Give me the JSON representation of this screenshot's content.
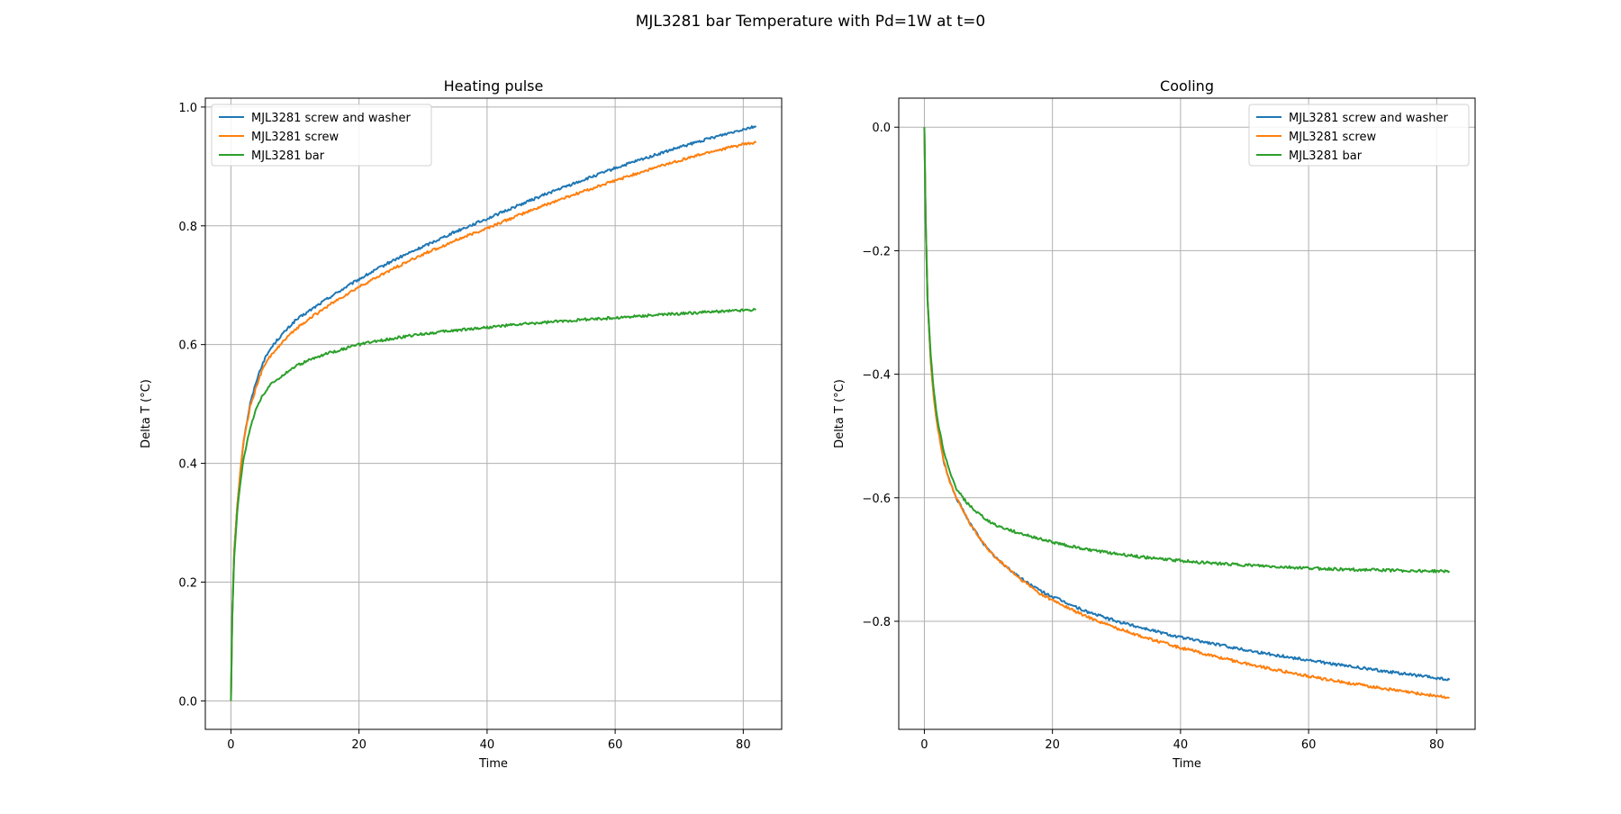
{
  "figure": {
    "title": "MJL3281 bar Temperature with Pd=1W at t=0"
  },
  "colors": {
    "series1": "#1f77b4",
    "series2": "#ff7f0e",
    "series3": "#2ca02c",
    "grid": "#b0b0b0"
  },
  "chart_data": [
    {
      "type": "line",
      "title": "Heating pulse",
      "xlabel": "Time",
      "ylabel": "Delta T (°C)",
      "xlim": [
        -4,
        86
      ],
      "ylim": [
        -0.048,
        1.015
      ],
      "xticks": [
        0,
        20,
        40,
        60,
        80
      ],
      "yticks": [
        0.0,
        0.2,
        0.4,
        0.6,
        0.8,
        1.0
      ],
      "ytick_labels": [
        "0.0",
        "0.2",
        "0.4",
        "0.6",
        "0.8",
        "1.0"
      ],
      "xtick_labels": [
        "0",
        "20",
        "40",
        "60",
        "80"
      ],
      "grid": true,
      "legend": "upper-left",
      "series": [
        {
          "name": "MJL3281 screw and washer",
          "x": [
            0,
            0.2,
            0.5,
            1,
            1.5,
            2,
            3,
            4,
            5,
            6,
            7,
            8,
            10,
            12,
            15,
            18,
            20,
            25,
            30,
            35,
            40,
            45,
            50,
            55,
            60,
            65,
            70,
            75,
            80,
            82
          ],
          "y": [
            0.0,
            0.14,
            0.25,
            0.33,
            0.39,
            0.44,
            0.5,
            0.54,
            0.57,
            0.59,
            0.605,
            0.617,
            0.64,
            0.655,
            0.677,
            0.697,
            0.71,
            0.74,
            0.765,
            0.79,
            0.812,
            0.835,
            0.857,
            0.877,
            0.897,
            0.915,
            0.932,
            0.948,
            0.963,
            0.968
          ]
        },
        {
          "name": "MJL3281 screw",
          "x": [
            0,
            0.2,
            0.5,
            1,
            1.5,
            2,
            3,
            4,
            5,
            6,
            7,
            8,
            10,
            12,
            15,
            18,
            20,
            25,
            30,
            35,
            40,
            45,
            50,
            55,
            60,
            65,
            70,
            75,
            80,
            82
          ],
          "y": [
            0.0,
            0.14,
            0.25,
            0.33,
            0.39,
            0.44,
            0.495,
            0.53,
            0.56,
            0.578,
            0.592,
            0.603,
            0.625,
            0.642,
            0.664,
            0.684,
            0.697,
            0.726,
            0.752,
            0.775,
            0.796,
            0.818,
            0.839,
            0.858,
            0.876,
            0.894,
            0.91,
            0.925,
            0.937,
            0.94
          ]
        },
        {
          "name": "MJL3281 bar",
          "x": [
            0,
            0.2,
            0.5,
            1,
            1.5,
            2,
            3,
            4,
            5,
            6,
            7,
            8,
            10,
            12,
            15,
            18,
            20,
            25,
            30,
            35,
            40,
            45,
            50,
            55,
            60,
            65,
            70,
            75,
            80,
            82
          ],
          "y": [
            0.0,
            0.14,
            0.24,
            0.32,
            0.37,
            0.41,
            0.46,
            0.495,
            0.515,
            0.53,
            0.54,
            0.548,
            0.563,
            0.573,
            0.585,
            0.594,
            0.6,
            0.61,
            0.618,
            0.624,
            0.629,
            0.634,
            0.638,
            0.642,
            0.645,
            0.649,
            0.652,
            0.655,
            0.658,
            0.659
          ]
        }
      ]
    },
    {
      "type": "line",
      "title": "Cooling",
      "xlabel": "Time",
      "ylabel": "Delta T (°C)",
      "xlim": [
        -4,
        86
      ],
      "ylim": [
        -0.975,
        0.047
      ],
      "xticks": [
        0,
        20,
        40,
        60,
        80
      ],
      "yticks": [
        0.0,
        -0.2,
        -0.4,
        -0.6,
        -0.8
      ],
      "ytick_labels": [
        "0.0",
        "−0.2",
        "−0.4",
        "−0.6",
        "−0.8"
      ],
      "xtick_labels": [
        "0",
        "20",
        "40",
        "60",
        "80"
      ],
      "grid": true,
      "legend": "upper-right",
      "series": [
        {
          "name": "MJL3281 screw and washer",
          "x": [
            0,
            0.2,
            0.5,
            1,
            1.5,
            2,
            3,
            4,
            5,
            6,
            7,
            8,
            10,
            12,
            15,
            18,
            20,
            25,
            30,
            35,
            40,
            45,
            50,
            55,
            60,
            65,
            70,
            75,
            80,
            82
          ],
          "y": [
            0.0,
            -0.15,
            -0.28,
            -0.38,
            -0.44,
            -0.48,
            -0.54,
            -0.575,
            -0.6,
            -0.62,
            -0.64,
            -0.655,
            -0.685,
            -0.705,
            -0.73,
            -0.75,
            -0.76,
            -0.783,
            -0.8,
            -0.813,
            -0.826,
            -0.836,
            -0.846,
            -0.855,
            -0.863,
            -0.871,
            -0.878,
            -0.885,
            -0.892,
            -0.895
          ]
        },
        {
          "name": "MJL3281 screw",
          "x": [
            0,
            0.2,
            0.5,
            1,
            1.5,
            2,
            3,
            4,
            5,
            6,
            7,
            8,
            10,
            12,
            15,
            18,
            20,
            25,
            30,
            35,
            40,
            45,
            50,
            55,
            60,
            65,
            70,
            75,
            80,
            82
          ],
          "y": [
            0.0,
            -0.15,
            -0.28,
            -0.38,
            -0.44,
            -0.48,
            -0.54,
            -0.575,
            -0.6,
            -0.62,
            -0.64,
            -0.655,
            -0.685,
            -0.705,
            -0.732,
            -0.755,
            -0.766,
            -0.791,
            -0.811,
            -0.828,
            -0.843,
            -0.856,
            -0.868,
            -0.879,
            -0.889,
            -0.898,
            -0.906,
            -0.914,
            -0.921,
            -0.924
          ]
        },
        {
          "name": "MJL3281 bar",
          "x": [
            0,
            0.2,
            0.5,
            1,
            1.5,
            2,
            3,
            4,
            5,
            6,
            7,
            8,
            10,
            12,
            15,
            18,
            20,
            25,
            30,
            35,
            40,
            45,
            50,
            55,
            60,
            65,
            70,
            75,
            80,
            82
          ],
          "y": [
            0.0,
            -0.15,
            -0.28,
            -0.37,
            -0.43,
            -0.47,
            -0.525,
            -0.56,
            -0.585,
            -0.6,
            -0.612,
            -0.622,
            -0.638,
            -0.648,
            -0.658,
            -0.666,
            -0.672,
            -0.683,
            -0.691,
            -0.697,
            -0.702,
            -0.706,
            -0.709,
            -0.712,
            -0.714,
            -0.716,
            -0.717,
            -0.718,
            -0.719,
            -0.719
          ]
        }
      ]
    }
  ]
}
